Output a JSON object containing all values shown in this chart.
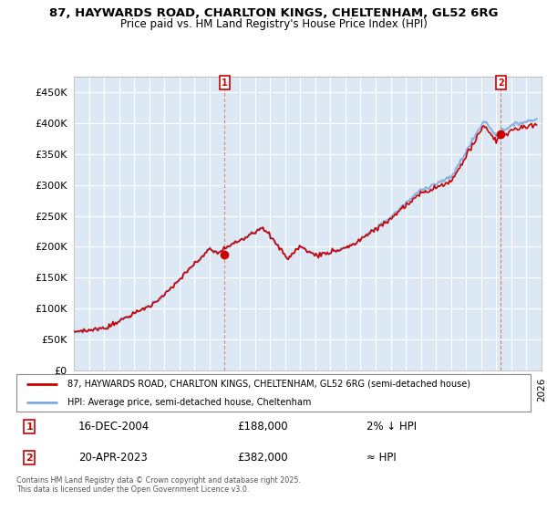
{
  "title_line1": "87, HAYWARDS ROAD, CHARLTON KINGS, CHELTENHAM, GL52 6RG",
  "title_line2": "Price paid vs. HM Land Registry's House Price Index (HPI)",
  "background_color": "#ffffff",
  "plot_bg_color": "#dce9f5",
  "grid_color": "#ffffff",
  "hpi_line_color": "#7faadd",
  "price_line_color": "#cc0000",
  "annotation1_date": "16-DEC-2004",
  "annotation1_price": "£188,000",
  "annotation1_vs": "2% ↓ HPI",
  "annotation2_date": "20-APR-2023",
  "annotation2_price": "£382,000",
  "annotation2_vs": "≈ HPI",
  "legend_line1": "87, HAYWARDS ROAD, CHARLTON KINGS, CHELTENHAM, GL52 6RG (semi-detached house)",
  "legend_line2": "HPI: Average price, semi-detached house, Cheltenham",
  "footer": "Contains HM Land Registry data © Crown copyright and database right 2025.\nThis data is licensed under the Open Government Licence v3.0.",
  "ylim": [
    0,
    475000
  ],
  "yticks": [
    0,
    50000,
    100000,
    150000,
    200000,
    250000,
    300000,
    350000,
    400000,
    450000
  ],
  "marker1_x": 2005.0,
  "marker1_y": 188000,
  "marker2_x": 2023.3,
  "marker2_y": 382000,
  "marker_color": "#cc0000",
  "dashed_line_color": "#cc6666",
  "xlim_start": 1995,
  "xlim_end": 2026
}
